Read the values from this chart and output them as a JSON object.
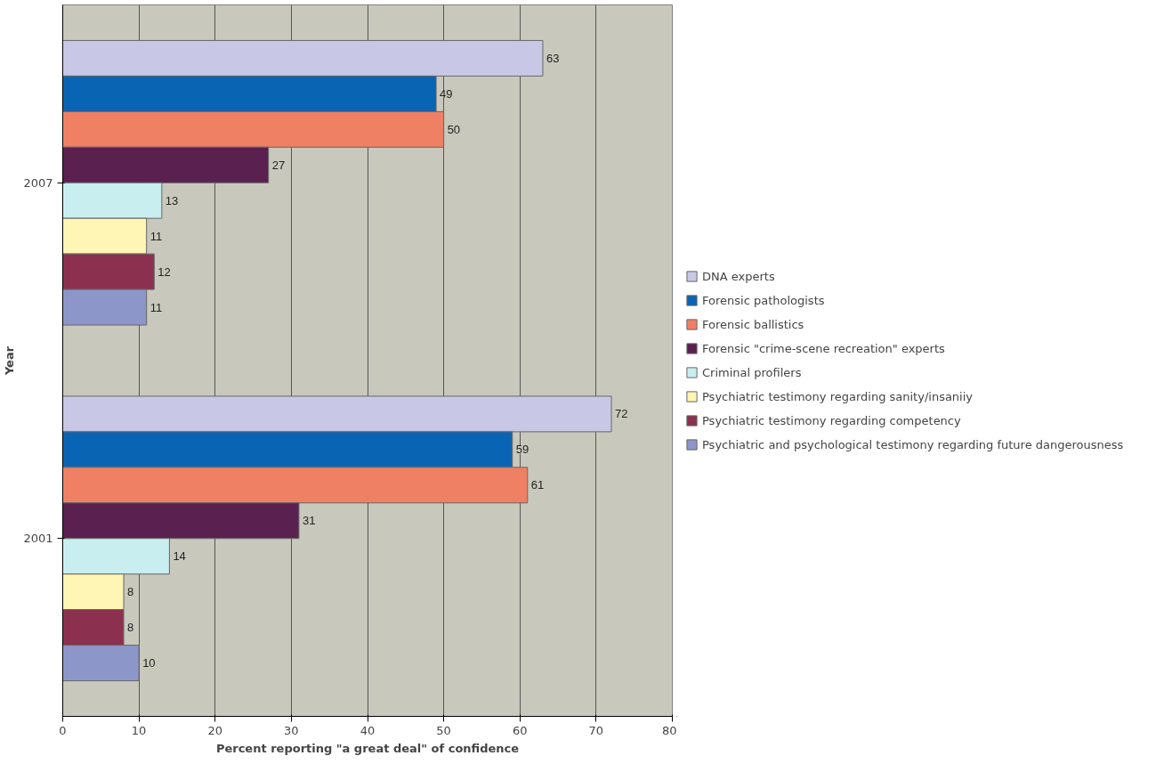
{
  "chart_data": {
    "type": "bar",
    "orientation": "horizontal",
    "xlabel": "Percent reporting \"a great deal\" of confidence",
    "ylabel": "Year",
    "categories": [
      "2007",
      "2001"
    ],
    "series": [
      {
        "name": "DNA experts",
        "color": "#c8c8e6",
        "values": [
          63,
          72
        ]
      },
      {
        "name": "Forensic pathologists",
        "color": "#0a64b4",
        "values": [
          49,
          59
        ]
      },
      {
        "name": "Forensic ballistics",
        "color": "#f08064",
        "values": [
          50,
          61
        ]
      },
      {
        "name": "Forensic \"crime-scene recreation\" experts",
        "color": "#5a2050",
        "values": [
          27,
          31
        ]
      },
      {
        "name": "Criminal profilers",
        "color": "#c8eef0",
        "values": [
          13,
          14
        ]
      },
      {
        "name": "Psychiatric testimony regarding sanity/insaniiy",
        "color": "#fff5b4",
        "values": [
          11,
          8
        ]
      },
      {
        "name": "Psychiatric testimony regarding competency",
        "color": "#8c3050",
        "values": [
          12,
          8
        ]
      },
      {
        "name": "Psychiatric and psychological testimony regarding future dangerousness",
        "color": "#8c96c8",
        "values": [
          11,
          10
        ]
      }
    ],
    "xlim": [
      0,
      80
    ],
    "xticks": [
      0,
      10,
      20,
      30,
      40,
      50,
      60,
      70,
      80
    ],
    "grid": "x",
    "legend": "right",
    "data_labels": true
  }
}
